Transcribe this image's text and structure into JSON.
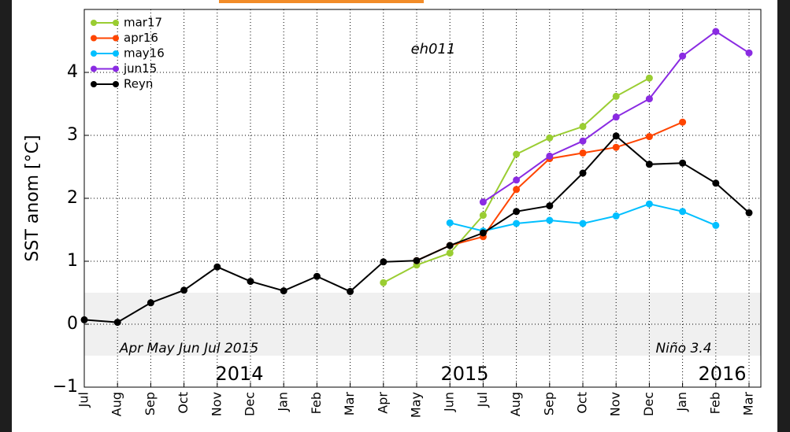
{
  "chart_data": {
    "type": "line",
    "ylabel": "SST anom [°C]",
    "annotations": [
      "eh011",
      "Apr May Jun Jul 2015",
      "Niño 3.4",
      "2014",
      "2015",
      "2016"
    ],
    "categories": [
      "Jul",
      "Aug",
      "Sep",
      "Oct",
      "Nov",
      "Dec",
      "Jan",
      "Feb",
      "Mar",
      "Apr",
      "May",
      "Jun",
      "Jul",
      "Aug",
      "Sep",
      "Oct",
      "Nov",
      "Dec",
      "Jan",
      "Feb",
      "Mar"
    ],
    "series": [
      {
        "name": "mar17",
        "color": "#9acd32",
        "values": [
          null,
          null,
          null,
          null,
          null,
          null,
          null,
          null,
          null,
          0.66,
          0.94,
          1.13,
          1.73,
          2.7,
          2.96,
          3.14,
          3.62,
          3.91,
          null,
          null,
          null
        ]
      },
      {
        "name": "apr16",
        "color": "#ff4500",
        "values": [
          null,
          null,
          null,
          null,
          null,
          null,
          null,
          null,
          null,
          null,
          1.01,
          1.25,
          1.39,
          2.14,
          2.63,
          2.72,
          2.81,
          2.98,
          3.21,
          null,
          null
        ]
      },
      {
        "name": "may16",
        "color": "#00bfff",
        "values": [
          null,
          null,
          null,
          null,
          null,
          null,
          null,
          null,
          null,
          null,
          null,
          1.61,
          1.48,
          1.6,
          1.65,
          1.6,
          1.72,
          1.91,
          1.79,
          1.57,
          null
        ]
      },
      {
        "name": "jun15",
        "color": "#8a2be2",
        "values": [
          null,
          null,
          null,
          null,
          null,
          null,
          null,
          null,
          null,
          null,
          null,
          null,
          1.94,
          2.29,
          2.67,
          2.91,
          3.29,
          3.58,
          4.26,
          4.65,
          4.31
        ]
      },
      {
        "name": "Reyn",
        "color": "#000000",
        "values": [
          0.07,
          0.03,
          0.34,
          0.54,
          0.91,
          0.68,
          0.53,
          0.76,
          0.52,
          0.99,
          1.01,
          1.25,
          1.45,
          1.79,
          1.88,
          2.4,
          2.99,
          2.54,
          2.56,
          2.24,
          1.77
        ]
      }
    ],
    "ylim": [
      -1,
      5
    ],
    "yticks": [
      {
        "value": -1,
        "label": "−1"
      },
      0,
      1,
      2,
      3,
      4
    ],
    "shaded_band": [
      -0.5,
      0.5
    ],
    "grid": true,
    "legend": "upper left"
  }
}
